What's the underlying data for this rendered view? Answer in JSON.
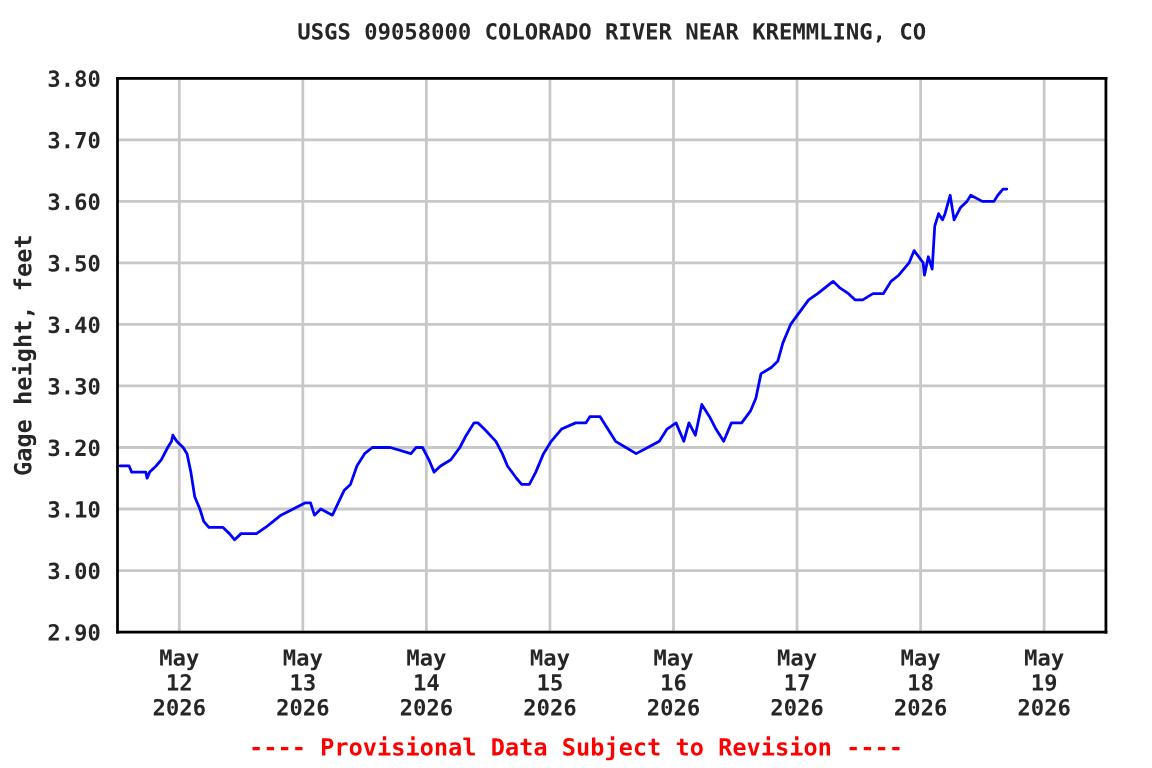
{
  "chart_data": {
    "type": "line",
    "title": "USGS 09058000 COLORADO RIVER NEAR KREMMLING, CO",
    "ylabel": "Gage height, feet",
    "annotations": [
      "---- Provisional Data Subject to Revision ----"
    ],
    "grid": true,
    "legend": false,
    "marker": "none",
    "line_style": "solid",
    "xlim": [
      "2026-05-11T12:00",
      "2026-05-19T12:00"
    ],
    "xticks": [
      {
        "value": "2026-05-12",
        "label": "May\n12\n2026"
      },
      {
        "value": "2026-05-13",
        "label": "May\n13\n2026"
      },
      {
        "value": "2026-05-14",
        "label": "May\n14\n2026"
      },
      {
        "value": "2026-05-15",
        "label": "May\n15\n2026"
      },
      {
        "value": "2026-05-16",
        "label": "May\n16\n2026"
      },
      {
        "value": "2026-05-17",
        "label": "May\n17\n2026"
      },
      {
        "value": "2026-05-18",
        "label": "May\n18\n2026"
      },
      {
        "value": "2026-05-19",
        "label": "May\n19\n2026"
      }
    ],
    "ylim": [
      2.9,
      3.8
    ],
    "yticks": [
      {
        "value": 2.9,
        "label": "2.90"
      },
      {
        "value": 3.0,
        "label": "3.00"
      },
      {
        "value": 3.1,
        "label": "3.10"
      },
      {
        "value": 3.2,
        "label": "3.20"
      },
      {
        "value": 3.3,
        "label": "3.30"
      },
      {
        "value": 3.4,
        "label": "3.40"
      },
      {
        "value": 3.5,
        "label": "3.50"
      },
      {
        "value": 3.6,
        "label": "3.60"
      },
      {
        "value": 3.7,
        "label": "3.70"
      },
      {
        "value": 3.8,
        "label": "3.80"
      }
    ],
    "x": [
      "2026-05-11T12:30",
      "2026-05-11T14:15",
      "2026-05-11T14:45",
      "2026-05-11T17:30",
      "2026-05-11T17:45",
      "2026-05-11T18:15",
      "2026-05-11T19:30",
      "2026-05-11T20:30",
      "2026-05-11T21:45",
      "2026-05-11T22:30",
      "2026-05-11T22:45",
      "2026-05-11T23:30",
      "2026-05-12T00:45",
      "2026-05-12T01:30",
      "2026-05-12T02:15",
      "2026-05-12T03:00",
      "2026-05-12T04:00",
      "2026-05-12T04:45",
      "2026-05-12T05:45",
      "2026-05-12T08:30",
      "2026-05-12T09:45",
      "2026-05-12T10:45",
      "2026-05-12T12:00",
      "2026-05-12T15:00",
      "2026-05-12T16:45",
      "2026-05-12T18:15",
      "2026-05-12T19:45",
      "2026-05-13T00:30",
      "2026-05-13T01:30",
      "2026-05-13T02:15",
      "2026-05-13T03:30",
      "2026-05-13T05:45",
      "2026-05-13T08:00",
      "2026-05-13T09:15",
      "2026-05-13T10:30",
      "2026-05-13T12:00",
      "2026-05-13T13:30",
      "2026-05-13T17:00",
      "2026-05-13T21:00",
      "2026-05-13T22:00",
      "2026-05-13T23:15",
      "2026-05-14T00:30",
      "2026-05-14T01:30",
      "2026-05-14T02:45",
      "2026-05-14T04:45",
      "2026-05-14T06:30",
      "2026-05-14T07:45",
      "2026-05-14T09:15",
      "2026-05-14T10:00",
      "2026-05-14T11:15",
      "2026-05-14T13:30",
      "2026-05-14T14:45",
      "2026-05-14T15:45",
      "2026-05-14T17:30",
      "2026-05-14T18:30",
      "2026-05-14T20:00",
      "2026-05-14T21:15",
      "2026-05-14T22:45",
      "2026-05-15T00:15",
      "2026-05-15T02:15",
      "2026-05-15T05:00",
      "2026-05-15T07:00",
      "2026-05-15T07:45",
      "2026-05-15T09:45",
      "2026-05-15T11:15",
      "2026-05-15T12:45",
      "2026-05-15T14:45",
      "2026-05-15T16:45",
      "2026-05-15T19:00",
      "2026-05-15T21:15",
      "2026-05-15T22:45",
      "2026-05-16T00:30",
      "2026-05-16T02:00",
      "2026-05-16T03:00",
      "2026-05-16T04:15",
      "2026-05-16T05:30",
      "2026-05-16T07:00",
      "2026-05-16T08:15",
      "2026-05-16T09:45",
      "2026-05-16T11:15",
      "2026-05-16T13:15",
      "2026-05-16T15:00",
      "2026-05-16T16:00",
      "2026-05-16T17:00",
      "2026-05-16T19:00",
      "2026-05-16T20:15",
      "2026-05-16T21:15",
      "2026-05-16T22:45",
      "2026-05-17T00:30",
      "2026-05-17T02:15",
      "2026-05-17T04:00",
      "2026-05-17T07:00",
      "2026-05-17T08:15",
      "2026-05-17T10:00",
      "2026-05-17T11:15",
      "2026-05-17T12:45",
      "2026-05-17T14:45",
      "2026-05-17T16:45",
      "2026-05-17T18:15",
      "2026-05-17T19:45",
      "2026-05-17T21:45",
      "2026-05-17T22:45",
      "2026-05-18T00:30",
      "2026-05-18T00:45",
      "2026-05-18T01:30",
      "2026-05-18T02:15",
      "2026-05-18T02:45",
      "2026-05-18T03:30",
      "2026-05-18T04:15",
      "2026-05-18T04:45",
      "2026-05-18T05:45",
      "2026-05-18T06:30",
      "2026-05-18T07:45",
      "2026-05-18T09:00",
      "2026-05-18T09:45",
      "2026-05-18T12:00",
      "2026-05-18T14:15",
      "2026-05-18T15:00",
      "2026-05-18T16:00",
      "2026-05-18T16:45"
    ],
    "series": [
      {
        "color": "#0000ff",
        "values": [
          3.17,
          3.17,
          3.16,
          3.16,
          3.15,
          3.16,
          3.17,
          3.18,
          3.2,
          3.21,
          3.22,
          3.21,
          3.2,
          3.19,
          3.16,
          3.12,
          3.1,
          3.08,
          3.07,
          3.07,
          3.06,
          3.05,
          3.06,
          3.06,
          3.07,
          3.08,
          3.09,
          3.11,
          3.11,
          3.09,
          3.1,
          3.09,
          3.13,
          3.14,
          3.17,
          3.19,
          3.2,
          3.2,
          3.19,
          3.2,
          3.2,
          3.18,
          3.16,
          3.17,
          3.18,
          3.2,
          3.22,
          3.24,
          3.24,
          3.23,
          3.21,
          3.19,
          3.17,
          3.15,
          3.14,
          3.14,
          3.16,
          3.19,
          3.21,
          3.23,
          3.24,
          3.24,
          3.25,
          3.25,
          3.23,
          3.21,
          3.2,
          3.19,
          3.2,
          3.21,
          3.23,
          3.24,
          3.21,
          3.24,
          3.22,
          3.27,
          3.25,
          3.23,
          3.21,
          3.24,
          3.24,
          3.26,
          3.28,
          3.32,
          3.33,
          3.34,
          3.37,
          3.4,
          3.42,
          3.44,
          3.45,
          3.47,
          3.46,
          3.45,
          3.44,
          3.44,
          3.45,
          3.45,
          3.47,
          3.48,
          3.5,
          3.52,
          3.5,
          3.48,
          3.51,
          3.49,
          3.56,
          3.58,
          3.57,
          3.58,
          3.61,
          3.57,
          3.59,
          3.6,
          3.61,
          3.6,
          3.6,
          3.61,
          3.62,
          3.62
        ]
      }
    ]
  }
}
